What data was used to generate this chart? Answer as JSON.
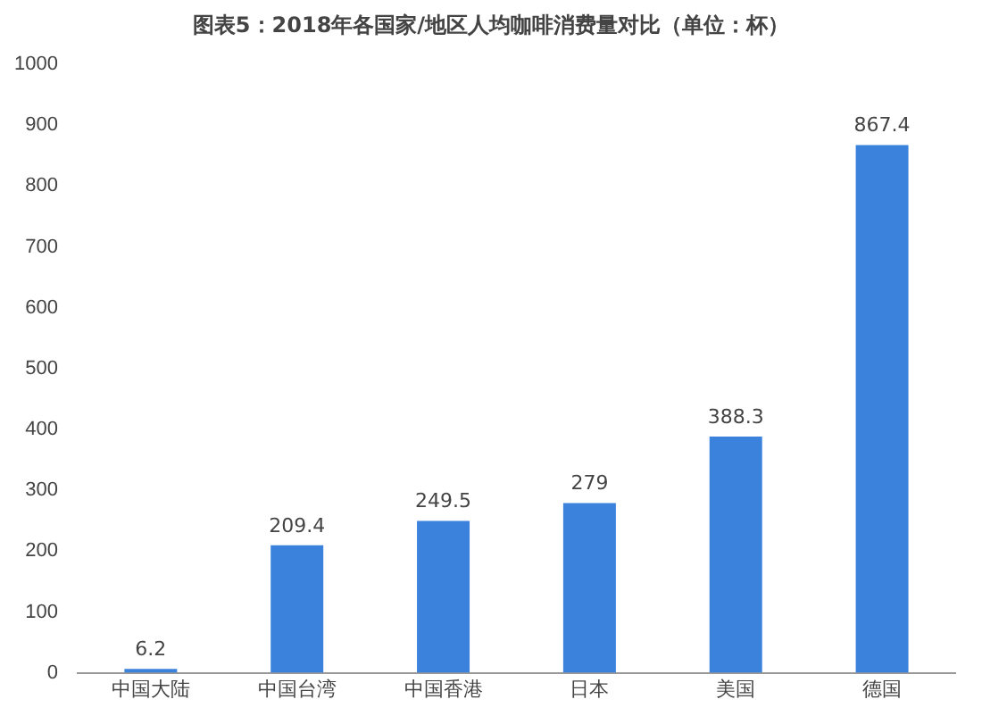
{
  "chart_data": {
    "type": "bar",
    "title": "图表5：2018年各国家/地区人均咖啡消费量对比（单位：杯）",
    "categories": [
      "中国大陆",
      "中国台湾",
      "中国香港",
      "日本",
      "美国",
      "德国"
    ],
    "values": [
      6.2,
      209.4,
      249.5,
      279,
      388.3,
      867.4
    ],
    "color": "#3b82dc",
    "ylim": [
      0,
      1000
    ],
    "yticks": [
      0,
      100,
      200,
      300,
      400,
      500,
      600,
      700,
      800,
      900,
      1000
    ],
    "grid": false,
    "legend": false,
    "data_labels": true
  }
}
